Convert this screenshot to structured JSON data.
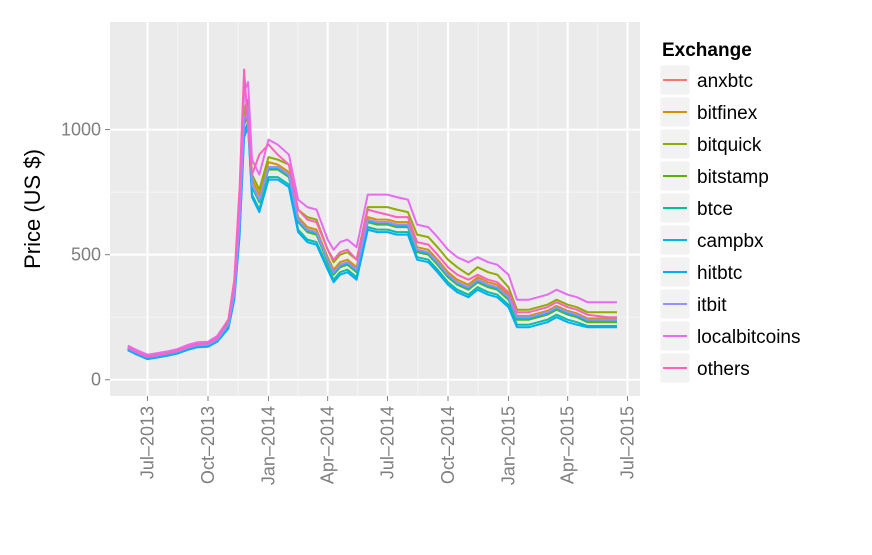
{
  "chart_data": {
    "type": "line",
    "title": "",
    "xlabel": "",
    "ylabel": "Price (US $)",
    "ylim": [
      -65,
      1430
    ],
    "xlim": [
      "2013-05-05",
      "2015-07-20"
    ],
    "grid": true,
    "legend": {
      "title": "Exchange",
      "position": "right"
    },
    "y_ticks": [
      0,
      500,
      1000
    ],
    "x_ticks": [
      {
        "date": "2013-07-01",
        "label": "Jul–2013"
      },
      {
        "date": "2013-10-01",
        "label": "Oct–2013"
      },
      {
        "date": "2014-01-01",
        "label": "Jan–2014"
      },
      {
        "date": "2014-04-01",
        "label": "Apr–2014"
      },
      {
        "date": "2014-07-01",
        "label": "Jul–2014"
      },
      {
        "date": "2014-10-01",
        "label": "Oct–2014"
      },
      {
        "date": "2015-01-01",
        "label": "Jan–2015"
      },
      {
        "date": "2015-04-01",
        "label": "Apr–2015"
      },
      {
        "date": "2015-07-01",
        "label": "Jul–2015"
      }
    ],
    "x": [
      "2013-06-01",
      "2013-06-15",
      "2013-07-01",
      "2013-07-15",
      "2013-08-01",
      "2013-08-15",
      "2013-09-01",
      "2013-09-15",
      "2013-10-01",
      "2013-10-15",
      "2013-11-01",
      "2013-11-10",
      "2013-11-18",
      "2013-11-25",
      "2013-12-01",
      "2013-12-07",
      "2013-12-18",
      "2014-01-01",
      "2014-01-15",
      "2014-02-01",
      "2014-02-15",
      "2014-03-01",
      "2014-03-15",
      "2014-04-01",
      "2014-04-10",
      "2014-04-20",
      "2014-05-01",
      "2014-05-15",
      "2014-06-01",
      "2014-06-15",
      "2014-07-01",
      "2014-07-15",
      "2014-08-01",
      "2014-08-15",
      "2014-09-01",
      "2014-09-15",
      "2014-10-01",
      "2014-10-15",
      "2014-11-01",
      "2014-11-15",
      "2014-12-01",
      "2014-12-15",
      "2015-01-01",
      "2015-01-14",
      "2015-02-01",
      "2015-02-15",
      "2015-03-01",
      "2015-03-15",
      "2015-04-01",
      "2015-04-15",
      "2015-05-01",
      "2015-05-15",
      "2015-06-01",
      "2015-06-15"
    ],
    "series": [
      {
        "name": "anxbtc",
        "color": "#F8766D",
        "values": [
          126,
          108,
          90,
          96,
          104,
          112,
          128,
          138,
          140,
          160,
          220,
          345,
          620,
          1040,
          1080,
          780,
          720,
          850,
          850,
          820,
          640,
          600,
          590,
          480,
          430,
          460,
          470,
          440,
          640,
          630,
          630,
          620,
          620,
          520,
          510,
          470,
          420,
          390,
          370,
          400,
          380,
          370,
          330,
          250,
          250,
          260,
          270,
          290,
          270,
          260,
          240,
          240,
          240,
          240
        ]
      },
      {
        "name": "bitfinex",
        "color": "#D39200",
        "values": [
          126,
          108,
          92,
          98,
          106,
          114,
          130,
          140,
          142,
          165,
          225,
          350,
          640,
          1060,
          1100,
          800,
          740,
          870,
          860,
          830,
          650,
          610,
          600,
          490,
          440,
          470,
          480,
          450,
          650,
          640,
          640,
          630,
          630,
          530,
          520,
          480,
          430,
          400,
          380,
          410,
          390,
          380,
          340,
          255,
          255,
          265,
          275,
          295,
          275,
          265,
          245,
          245,
          245,
          245
        ]
      },
      {
        "name": "bitquick",
        "color": "#93AA00",
        "values": [
          130,
          112,
          96,
          102,
          110,
          118,
          134,
          144,
          146,
          170,
          230,
          360,
          660,
          1080,
          1120,
          820,
          760,
          890,
          880,
          860,
          680,
          650,
          640,
          520,
          470,
          500,
          510,
          480,
          690,
          690,
          690,
          680,
          670,
          580,
          570,
          530,
          480,
          450,
          420,
          450,
          430,
          420,
          370,
          280,
          280,
          290,
          300,
          320,
          300,
          290,
          270,
          270,
          270,
          270
        ]
      },
      {
        "name": "bitstamp",
        "color": "#5BB300",
        "values": [
          124,
          106,
          88,
          94,
          102,
          110,
          126,
          136,
          138,
          158,
          215,
          340,
          600,
          1020,
          1060,
          770,
          710,
          840,
          840,
          810,
          630,
          590,
          580,
          470,
          420,
          450,
          460,
          430,
          630,
          620,
          620,
          610,
          610,
          510,
          500,
          460,
          410,
          380,
          360,
          390,
          370,
          360,
          320,
          240,
          240,
          250,
          260,
          280,
          260,
          250,
          230,
          230,
          230,
          230
        ]
      },
      {
        "name": "btce",
        "color": "#00C19F",
        "values": [
          120,
          102,
          84,
          90,
          98,
          106,
          122,
          132,
          134,
          154,
          210,
          330,
          580,
          990,
          1030,
          740,
          680,
          810,
          810,
          780,
          600,
          560,
          550,
          450,
          400,
          430,
          440,
          410,
          610,
          600,
          600,
          590,
          590,
          490,
          480,
          440,
          390,
          360,
          340,
          370,
          350,
          340,
          300,
          220,
          220,
          230,
          240,
          260,
          240,
          230,
          215,
          215,
          215,
          215
        ]
      },
      {
        "name": "campbx",
        "color": "#00B9E3",
        "values": [
          125,
          107,
          89,
          95,
          103,
          111,
          127,
          137,
          139,
          159,
          218,
          342,
          610,
          1030,
          1070,
          775,
          715,
          845,
          845,
          815,
          635,
          595,
          585,
          475,
          425,
          455,
          465,
          435,
          635,
          625,
          625,
          615,
          615,
          515,
          505,
          465,
          415,
          385,
          365,
          395,
          375,
          365,
          325,
          245,
          245,
          255,
          265,
          285,
          265,
          255,
          235,
          235,
          235,
          235
        ]
      },
      {
        "name": "hitbtc",
        "color": "#00ADFA",
        "values": [
          118,
          100,
          82,
          88,
          96,
          104,
          120,
          130,
          132,
          152,
          205,
          320,
          570,
          970,
          1010,
          730,
          670,
          800,
          800,
          770,
          590,
          550,
          540,
          440,
          390,
          420,
          430,
          400,
          600,
          590,
          590,
          580,
          580,
          480,
          470,
          430,
          380,
          350,
          330,
          360,
          340,
          330,
          290,
          210,
          210,
          220,
          230,
          250,
          230,
          220,
          210,
          210,
          210,
          210
        ]
      },
      {
        "name": "itbit",
        "color": "#9590FF",
        "values": [
          126,
          108,
          90,
          96,
          104,
          112,
          128,
          138,
          140,
          160,
          220,
          345,
          620,
          1040,
          1080,
          780,
          720,
          850,
          850,
          820,
          640,
          600,
          590,
          480,
          430,
          460,
          470,
          440,
          640,
          630,
          630,
          620,
          620,
          520,
          510,
          470,
          420,
          390,
          370,
          400,
          380,
          370,
          330,
          250,
          250,
          260,
          270,
          290,
          270,
          260,
          240,
          240,
          240,
          240
        ]
      },
      {
        "name": "localbitcoins",
        "color": "#E76BF3",
        "values": [
          136,
          118,
          100,
          106,
          114,
          122,
          140,
          150,
          152,
          175,
          240,
          380,
          700,
          1150,
          1190,
          880,
          820,
          960,
          940,
          900,
          720,
          690,
          680,
          560,
          520,
          550,
          560,
          530,
          740,
          740,
          740,
          730,
          720,
          620,
          610,
          570,
          520,
          490,
          470,
          490,
          470,
          460,
          420,
          320,
          320,
          330,
          340,
          360,
          340,
          330,
          310,
          310,
          310,
          310
        ]
      },
      {
        "name": "others",
        "color": "#FF62BC",
        "values": [
          130,
          110,
          92,
          98,
          106,
          116,
          132,
          142,
          146,
          168,
          240,
          400,
          760,
          1240,
          1000,
          820,
          900,
          940,
          900,
          860,
          680,
          640,
          630,
          520,
          480,
          510,
          520,
          480,
          680,
          670,
          660,
          650,
          650,
          550,
          540,
          500,
          450,
          420,
          400,
          420,
          400,
          390,
          350,
          270,
          270,
          280,
          290,
          310,
          290,
          280,
          260,
          255,
          250,
          250
        ]
      }
    ]
  }
}
